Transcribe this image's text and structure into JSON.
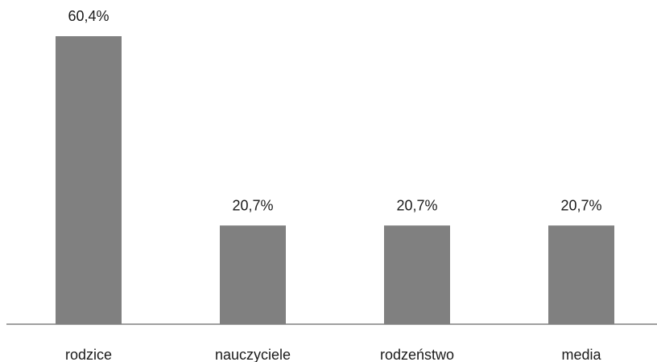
{
  "chart_data": {
    "type": "bar",
    "categories": [
      "rodzice",
      "nauczyciele",
      "rodzeństwo",
      "media"
    ],
    "values": [
      60.4,
      20.7,
      20.7,
      20.7
    ],
    "value_labels": [
      "60,4%",
      "20,7%",
      "20,7%",
      "20,7%"
    ],
    "unit": "%",
    "title": "",
    "xlabel": "",
    "ylabel": "",
    "ylim": [
      0,
      60.4
    ],
    "grid": false,
    "legend": "none",
    "colors": {
      "bar": "#808080",
      "axis": "#808080",
      "text": "#1a1a1a"
    }
  }
}
